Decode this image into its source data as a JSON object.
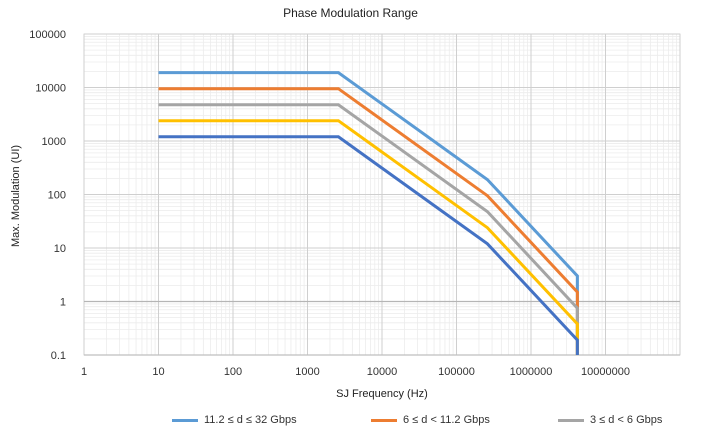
{
  "chart_data": {
    "type": "line",
    "title": "Phase Modulation Range",
    "xlabel": "SJ Frequency (Hz)",
    "ylabel": "Max. Modulation (UI)",
    "xscale": "log",
    "yscale": "log",
    "xlim": [
      1,
      100000000
    ],
    "ylim": [
      0.1,
      100000
    ],
    "x_ticks": [
      "1",
      "10",
      "100",
      "1000",
      "10000",
      "100000",
      "1000000",
      "10000000"
    ],
    "y_ticks": [
      "0.1",
      "1",
      "10",
      "100",
      "1000",
      "10000",
      "100000"
    ],
    "grid": true,
    "legend_position": "bottom",
    "series": [
      {
        "name": "11.2 ≤ d ≤ 32 Gbps",
        "color": "#5b9bd5",
        "points": [
          [
            10,
            19000
          ],
          [
            2600,
            19000
          ],
          [
            260000,
            190
          ],
          [
            4200000,
            3
          ],
          [
            4200000,
            0.1
          ]
        ]
      },
      {
        "name": "6 ≤ d < 11.2 Gbps",
        "color": "#ed7d31",
        "points": [
          [
            10,
            9500
          ],
          [
            2600,
            9500
          ],
          [
            260000,
            95
          ],
          [
            4200000,
            1.5
          ],
          [
            4200000,
            0.1
          ]
        ]
      },
      {
        "name": "3 ≤ d < 6 Gbps",
        "color": "#a5a5a5",
        "points": [
          [
            10,
            4750
          ],
          [
            2600,
            4750
          ],
          [
            260000,
            48
          ],
          [
            4200000,
            0.75
          ],
          [
            4200000,
            0.1
          ]
        ]
      },
      {
        "name": "",
        "color": "#ffc000",
        "points": [
          [
            10,
            2400
          ],
          [
            2600,
            2400
          ],
          [
            260000,
            24
          ],
          [
            4200000,
            0.38
          ],
          [
            4200000,
            0.1
          ]
        ]
      },
      {
        "name": "",
        "color": "#4472c4",
        "points": [
          [
            10,
            1200
          ],
          [
            2600,
            1200
          ],
          [
            260000,
            12
          ],
          [
            4200000,
            0.19
          ],
          [
            4200000,
            0.1
          ]
        ]
      }
    ]
  }
}
